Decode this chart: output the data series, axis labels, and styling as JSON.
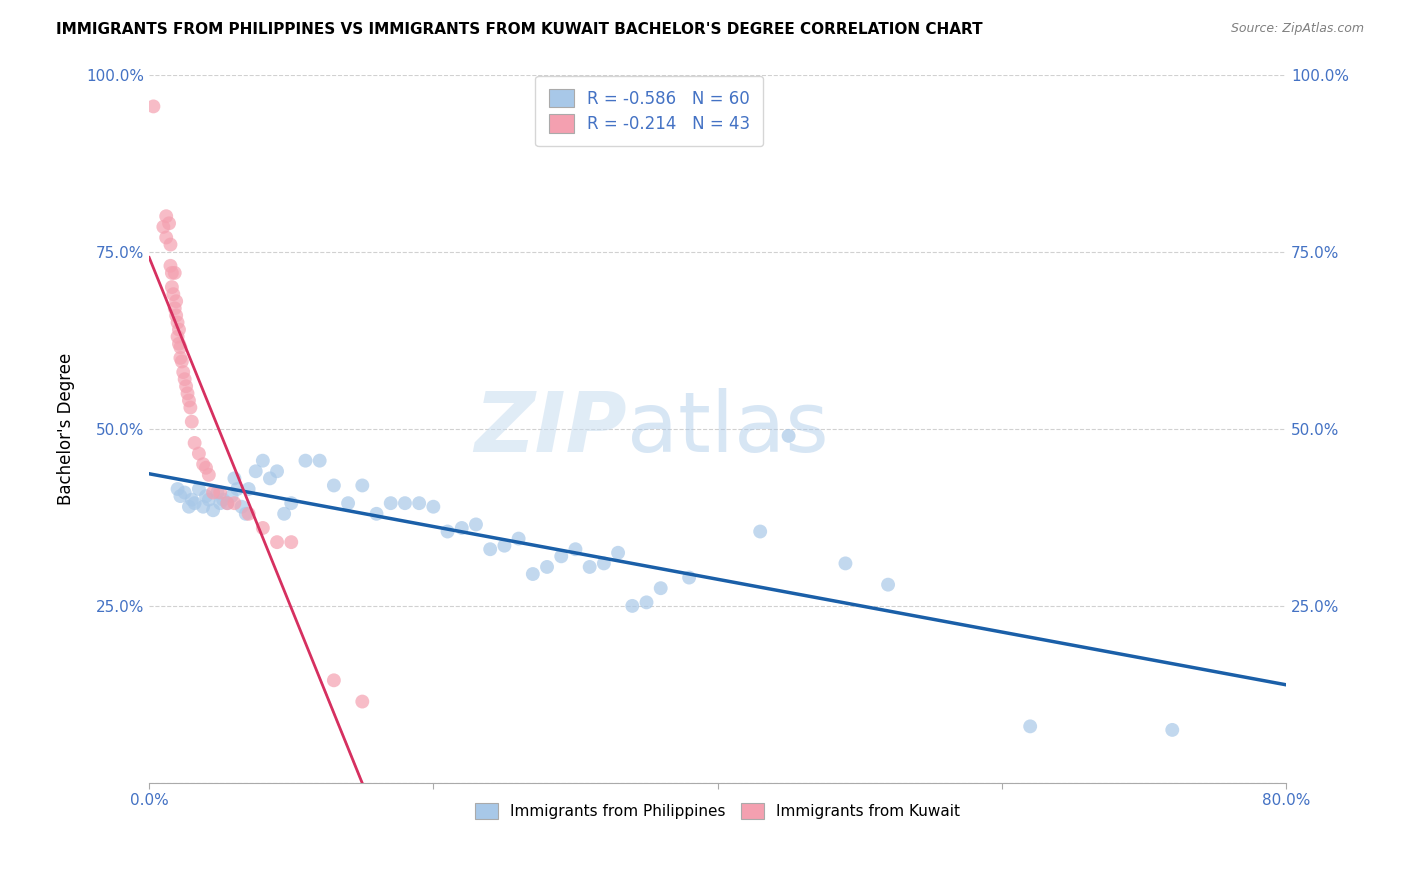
{
  "title": "IMMIGRANTS FROM PHILIPPINES VS IMMIGRANTS FROM KUWAIT BACHELOR'S DEGREE CORRELATION CHART",
  "source": "Source: ZipAtlas.com",
  "ylabel": "Bachelor's Degree",
  "xlim": [
    0.0,
    0.8
  ],
  "ylim": [
    0.0,
    1.0
  ],
  "xtick_labels": [
    "0.0%",
    "",
    "",
    "",
    "80.0%"
  ],
  "xtick_values": [
    0.0,
    0.2,
    0.4,
    0.6,
    0.8
  ],
  "ytick_labels": [
    "",
    "25.0%",
    "50.0%",
    "75.0%",
    "100.0%"
  ],
  "ytick_values": [
    0.0,
    0.25,
    0.5,
    0.75,
    1.0
  ],
  "right_ytick_labels": [
    "25.0%",
    "50.0%",
    "75.0%",
    "100.0%"
  ],
  "right_ytick_values": [
    0.25,
    0.5,
    0.75,
    1.0
  ],
  "legend_r1": "R = -0.586",
  "legend_n1": "N = 60",
  "legend_r2": "R = -0.214",
  "legend_n2": "N = 43",
  "blue_color": "#a8c8e8",
  "pink_color": "#f4a0b0",
  "blue_line_color": "#1a5fa8",
  "pink_line_color": "#d63060",
  "pink_dash_color": "#e8a0b8",
  "watermark_zip": "ZIP",
  "watermark_atlas": "atlas",
  "blue_scatter_x": [
    0.02,
    0.022,
    0.025,
    0.028,
    0.03,
    0.032,
    0.035,
    0.038,
    0.04,
    0.042,
    0.045,
    0.048,
    0.05,
    0.052,
    0.055,
    0.058,
    0.06,
    0.062,
    0.065,
    0.068,
    0.07,
    0.075,
    0.08,
    0.085,
    0.09,
    0.095,
    0.1,
    0.11,
    0.12,
    0.13,
    0.14,
    0.15,
    0.16,
    0.17,
    0.18,
    0.19,
    0.2,
    0.21,
    0.22,
    0.23,
    0.24,
    0.25,
    0.26,
    0.27,
    0.28,
    0.29,
    0.3,
    0.31,
    0.32,
    0.33,
    0.34,
    0.35,
    0.36,
    0.38,
    0.43,
    0.45,
    0.49,
    0.52,
    0.62,
    0.72
  ],
  "blue_scatter_y": [
    0.415,
    0.405,
    0.41,
    0.39,
    0.4,
    0.395,
    0.415,
    0.39,
    0.405,
    0.4,
    0.385,
    0.41,
    0.395,
    0.4,
    0.395,
    0.405,
    0.43,
    0.415,
    0.39,
    0.38,
    0.415,
    0.44,
    0.455,
    0.43,
    0.44,
    0.38,
    0.395,
    0.455,
    0.455,
    0.42,
    0.395,
    0.42,
    0.38,
    0.395,
    0.395,
    0.395,
    0.39,
    0.355,
    0.36,
    0.365,
    0.33,
    0.335,
    0.345,
    0.295,
    0.305,
    0.32,
    0.33,
    0.305,
    0.31,
    0.325,
    0.25,
    0.255,
    0.275,
    0.29,
    0.355,
    0.49,
    0.31,
    0.28,
    0.08,
    0.075
  ],
  "pink_scatter_x": [
    0.003,
    0.01,
    0.012,
    0.012,
    0.014,
    0.015,
    0.015,
    0.016,
    0.016,
    0.017,
    0.018,
    0.018,
    0.019,
    0.019,
    0.02,
    0.02,
    0.021,
    0.021,
    0.022,
    0.022,
    0.023,
    0.024,
    0.025,
    0.026,
    0.027,
    0.028,
    0.029,
    0.03,
    0.032,
    0.035,
    0.038,
    0.04,
    0.042,
    0.045,
    0.05,
    0.055,
    0.06,
    0.07,
    0.08,
    0.09,
    0.1,
    0.13,
    0.15
  ],
  "pink_scatter_y": [
    0.955,
    0.785,
    0.8,
    0.77,
    0.79,
    0.73,
    0.76,
    0.7,
    0.72,
    0.69,
    0.72,
    0.67,
    0.68,
    0.66,
    0.63,
    0.65,
    0.62,
    0.64,
    0.6,
    0.615,
    0.595,
    0.58,
    0.57,
    0.56,
    0.55,
    0.54,
    0.53,
    0.51,
    0.48,
    0.465,
    0.45,
    0.445,
    0.435,
    0.41,
    0.41,
    0.395,
    0.395,
    0.38,
    0.36,
    0.34,
    0.34,
    0.145,
    0.115
  ]
}
